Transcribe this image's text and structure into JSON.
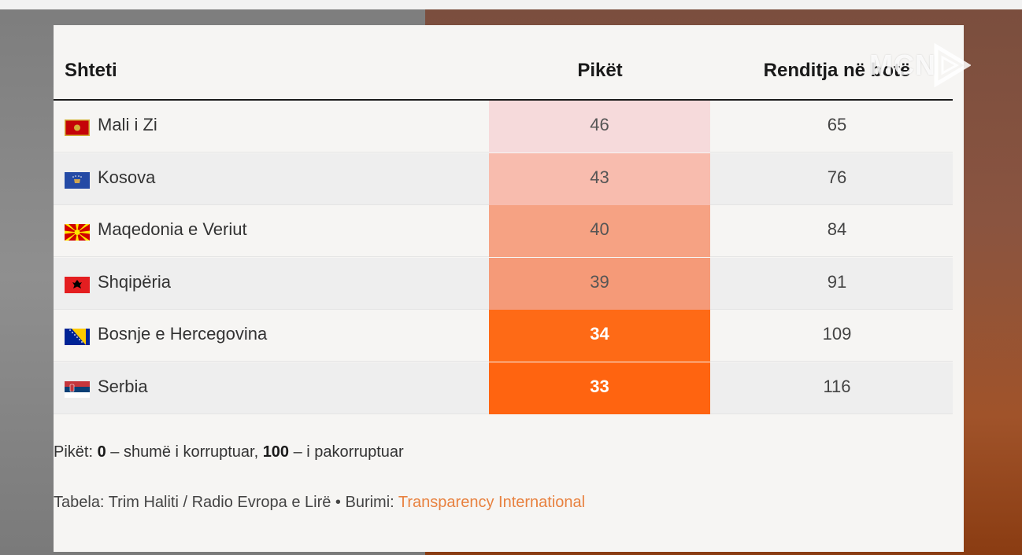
{
  "watermark": {
    "text": "MCN"
  },
  "colors": {
    "score_46": "#f6dadb",
    "score_43": "#f8bcae",
    "score_40": "#f6a283",
    "score_39": "#f59a78",
    "score_34": "#fe6a16",
    "score_33": "#ff6410",
    "link": "#e8813f"
  },
  "chart_data": {
    "type": "table",
    "columns": [
      "Shteti",
      "Pikët",
      "Renditja në botë"
    ],
    "rows": [
      {
        "country": "Mali i Zi",
        "flag": "montenegro-flag-icon",
        "score": 46,
        "rank": 65
      },
      {
        "country": "Kosova",
        "flag": "kosovo-flag-icon",
        "score": 43,
        "rank": 76
      },
      {
        "country": "Maqedonia e Veriut",
        "flag": "north-macedonia-flag-icon",
        "score": 40,
        "rank": 84
      },
      {
        "country": "Shqipëria",
        "flag": "albania-flag-icon",
        "score": 39,
        "rank": 91
      },
      {
        "country": "Bosnje e Hercegovina",
        "flag": "bosnia-flag-icon",
        "score": 34,
        "rank": 109
      },
      {
        "country": "Serbia",
        "flag": "serbia-flag-icon",
        "score": 33,
        "rank": 116
      }
    ]
  },
  "note": {
    "prefix": "Pikët: ",
    "min_value": "0",
    "min_text": " – shumë i korruptuar, ",
    "max_value": "100",
    "max_text": " – i pakorruptuar"
  },
  "source": {
    "text": "Tabela: Trim Haliti / Radio Evropa e Lirë • Burimi: ",
    "link": "Transparency International"
  }
}
